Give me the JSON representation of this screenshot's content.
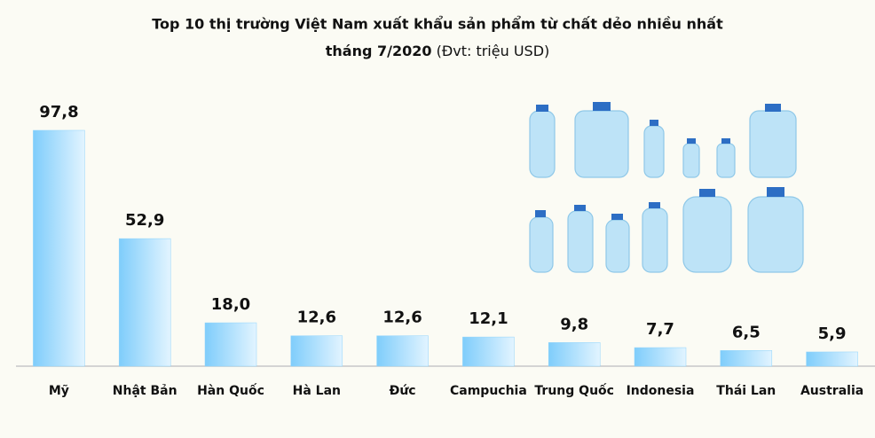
{
  "chart_data": {
    "type": "bar",
    "title": "Top 10 thị trường Việt Nam xuất khẩu sản phẩm từ chất dẻo nhiều nhất",
    "subtitle": "tháng 7/2020",
    "unit_note": "(Đvt: triệu USD)",
    "categories": [
      "Mỹ",
      "Nhật Bản",
      "Hàn Quốc",
      "Hà Lan",
      "Đức",
      "Campuchia",
      "Trung Quốc",
      "Indonesia",
      "Thái Lan",
      "Australia"
    ],
    "values": [
      97.8,
      52.9,
      18.0,
      12.6,
      12.6,
      12.1,
      9.8,
      7.7,
      6.5,
      5.9
    ],
    "value_labels": [
      "97,8",
      "52,9",
      "18,0",
      "12,6",
      "12,6",
      "12,1",
      "9,8",
      "7,7",
      "6,5",
      "5,9"
    ],
    "color": "#8fd3fb"
  }
}
